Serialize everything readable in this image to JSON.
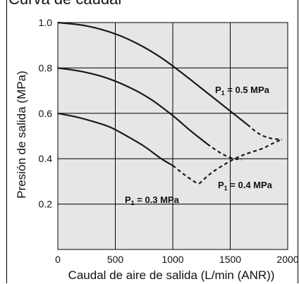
{
  "header": {
    "title": "Curva de caudal"
  },
  "chart_data": {
    "type": "line",
    "title": "",
    "xlabel": "Caudal de aire de salida (L/min (ANR))",
    "ylabel": "Presión de salida (MPa)",
    "xlim": [
      0,
      2000
    ],
    "ylim": [
      0,
      1.0
    ],
    "xticks": [
      0,
      500,
      1000,
      1500,
      2000
    ],
    "xtick_labels": [
      "0",
      "500",
      "1000",
      "1500",
      "2000"
    ],
    "yticks": [
      0.2,
      0.4,
      0.6,
      0.8,
      1.0
    ],
    "ytick_labels": [
      "0.2",
      "0.4",
      "0.6",
      "0.8",
      "1.0"
    ],
    "grid": true,
    "background_color": "#e6e6e6",
    "line_color": "#1a1a1a",
    "series": [
      {
        "name": "P1 = 0.5 MPa",
        "label_main": "P",
        "label_sub": "1",
        "label_rest": " = 0.5 MPa",
        "solid": {
          "x": [
            0,
            250,
            500,
            700,
            900,
            1100,
            1300,
            1500,
            1650
          ],
          "y": [
            1.0,
            0.985,
            0.95,
            0.905,
            0.845,
            0.77,
            0.69,
            0.61,
            0.55
          ]
        },
        "dashed": {
          "x": [
            1650,
            1750,
            1850,
            1950
          ],
          "y": [
            0.55,
            0.51,
            0.49,
            0.485
          ]
        }
      },
      {
        "name": "P1 = 0.4 MPa",
        "label_main": "P",
        "label_sub": "1",
        "label_rest": " = 0.4 MPa",
        "solid": {
          "x": [
            0,
            200,
            400,
            600,
            800,
            1000,
            1150,
            1300
          ],
          "y": [
            0.8,
            0.785,
            0.76,
            0.72,
            0.665,
            0.59,
            0.525,
            0.465
          ]
        },
        "dashed": {
          "x": [
            1300,
            1400,
            1500,
            1600
          ],
          "y": [
            0.465,
            0.43,
            0.405,
            0.395
          ]
        }
      },
      {
        "name": "P1 = 0.3 MPa",
        "label_main": "P",
        "label_sub": "1",
        "label_rest": " = 0.3 MPa",
        "solid": {
          "x": [
            0,
            150,
            300,
            450,
            600,
            750,
            900,
            1000
          ],
          "y": [
            0.6,
            0.585,
            0.565,
            0.54,
            0.5,
            0.455,
            0.4,
            0.37
          ]
        },
        "dashed": {
          "x": [
            1000,
            1100,
            1200,
            1230
          ],
          "y": [
            0.37,
            0.33,
            0.295,
            0.29
          ]
        }
      }
    ],
    "recovery_dashes": [
      {
        "x": [
          1230,
          1330,
          1450,
          1560,
          1660,
          1780,
          1880,
          1950
        ],
        "y": [
          0.29,
          0.335,
          0.375,
          0.405,
          0.425,
          0.445,
          0.47,
          0.485
        ]
      }
    ],
    "annotations": [
      "P1 = 0.5 MPa",
      "P1 = 0.4 MPa",
      "P1 = 0.3 MPa"
    ]
  }
}
